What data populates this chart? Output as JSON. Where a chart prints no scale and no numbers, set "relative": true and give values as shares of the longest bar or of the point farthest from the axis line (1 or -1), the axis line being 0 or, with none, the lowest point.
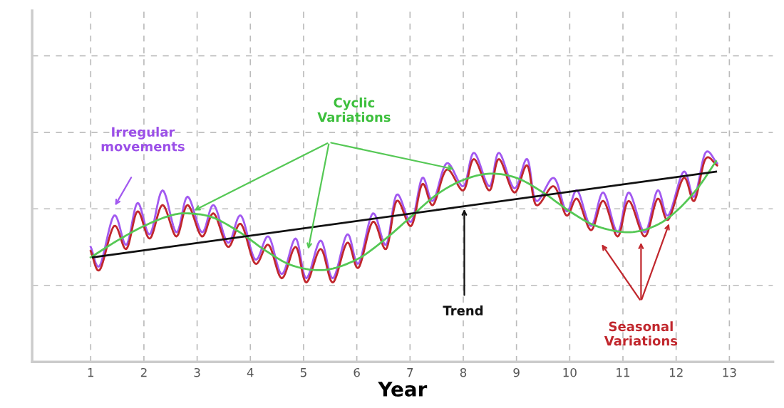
{
  "chart_data": {
    "type": "line",
    "relative": true,
    "xlabel": "Year",
    "xlim": [
      -0.1,
      13.82
    ],
    "xticks": [
      1,
      2,
      3,
      4,
      5,
      6,
      7,
      8,
      9,
      10,
      11,
      12,
      13
    ],
    "grid": true,
    "legend": false,
    "marker": "none",
    "line_style": "solid",
    "series": [
      {
        "color": "#a259f0",
        "x": [
          1.0,
          1.17,
          1.44,
          1.67,
          1.88,
          2.11,
          2.35,
          2.61,
          2.82,
          3.09,
          3.31,
          3.58,
          3.82,
          4.09,
          4.34,
          4.59,
          4.85,
          5.05,
          5.32,
          5.55,
          5.82,
          6.03,
          6.3,
          6.55,
          6.75,
          7.02,
          7.23,
          7.43,
          7.69,
          8.0,
          8.2,
          8.49,
          8.67,
          8.96,
          9.2,
          9.37,
          9.7,
          9.94,
          10.14,
          10.4,
          10.63,
          10.9,
          11.11,
          11.41,
          11.65,
          11.85,
          12.14,
          12.34,
          12.55,
          12.77
        ],
        "values": [
          0.55,
          0.46,
          0.7,
          0.56,
          0.76,
          0.61,
          0.82,
          0.62,
          0.79,
          0.62,
          0.75,
          0.57,
          0.7,
          0.49,
          0.6,
          0.42,
          0.59,
          0.4,
          0.58,
          0.4,
          0.61,
          0.47,
          0.71,
          0.56,
          0.8,
          0.67,
          0.88,
          0.77,
          0.95,
          0.84,
          1.0,
          0.84,
          1.0,
          0.83,
          0.97,
          0.77,
          0.88,
          0.72,
          0.82,
          0.65,
          0.81,
          0.62,
          0.81,
          0.62,
          0.82,
          0.7,
          0.91,
          0.79,
          1.0,
          0.95
        ]
      },
      {
        "color": "#c1272d",
        "x": [
          1.0,
          1.17,
          1.44,
          1.67,
          1.88,
          2.11,
          2.35,
          2.61,
          2.82,
          3.09,
          3.31,
          3.58,
          3.82,
          4.09,
          4.34,
          4.59,
          4.85,
          5.05,
          5.32,
          5.55,
          5.82,
          6.03,
          6.3,
          6.55,
          6.75,
          7.02,
          7.23,
          7.43,
          7.69,
          8.0,
          8.2,
          8.49,
          8.67,
          8.96,
          9.2,
          9.37,
          9.7,
          9.94,
          10.14,
          10.4,
          10.63,
          10.9,
          11.11,
          11.41,
          11.65,
          11.85,
          12.14,
          12.34,
          12.55,
          12.77
        ],
        "values": [
          0.53,
          0.44,
          0.65,
          0.54,
          0.72,
          0.59,
          0.75,
          0.6,
          0.75,
          0.6,
          0.71,
          0.55,
          0.66,
          0.47,
          0.56,
          0.4,
          0.55,
          0.38,
          0.54,
          0.38,
          0.57,
          0.45,
          0.67,
          0.54,
          0.77,
          0.65,
          0.85,
          0.75,
          0.92,
          0.82,
          0.97,
          0.82,
          0.97,
          0.81,
          0.94,
          0.75,
          0.84,
          0.7,
          0.78,
          0.63,
          0.77,
          0.6,
          0.77,
          0.6,
          0.78,
          0.68,
          0.88,
          0.77,
          0.97,
          0.94
        ]
      },
      {
        "color": "#55c855",
        "x": [
          1.0,
          1.5,
          2.0,
          2.5,
          2.85,
          3.3,
          3.8,
          4.3,
          4.8,
          5.4,
          6.0,
          6.5,
          7.0,
          7.5,
          8.0,
          8.5,
          9.0,
          9.5,
          10.0,
          10.5,
          11.1,
          11.6,
          12.0,
          12.4,
          12.75
        ],
        "values": [
          0.5,
          0.58,
          0.65,
          0.7,
          0.71,
          0.69,
          0.62,
          0.53,
          0.46,
          0.44,
          0.49,
          0.58,
          0.69,
          0.8,
          0.87,
          0.9,
          0.88,
          0.81,
          0.72,
          0.65,
          0.62,
          0.65,
          0.72,
          0.83,
          0.96
        ]
      },
      {
        "color": "#111111",
        "x": [
          1.04,
          12.75
        ],
        "values": [
          0.5,
          0.91
        ]
      }
    ],
    "annotations": [
      "Irregular\nmovements",
      "Cyclic\nVariations",
      "Trend",
      "Seasonal\nVariations"
    ]
  }
}
